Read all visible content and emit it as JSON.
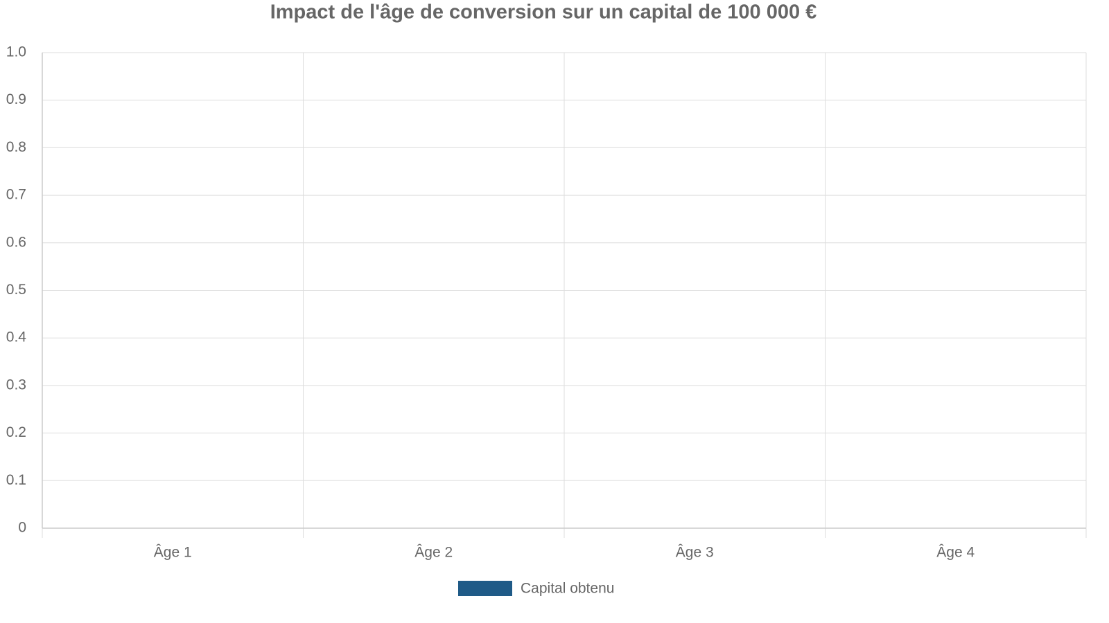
{
  "chart_data": {
    "type": "bar",
    "title": "Impact de l'âge de conversion sur un capital de 100 000 €",
    "categories": [
      "Âge 1",
      "Âge 2",
      "Âge 3",
      "Âge 4"
    ],
    "series": [
      {
        "name": "Capital obtenu",
        "color": "#1f5a87",
        "values": [
          0,
          0,
          0,
          0
        ]
      }
    ],
    "ylim": [
      0,
      1
    ],
    "yticks": [
      0,
      0.1,
      0.2,
      0.3,
      0.4,
      0.5,
      0.6,
      0.7,
      0.8,
      0.9,
      {
        "value": 1,
        "label": "1.0"
      }
    ],
    "grid": true,
    "legend": "bottom"
  }
}
